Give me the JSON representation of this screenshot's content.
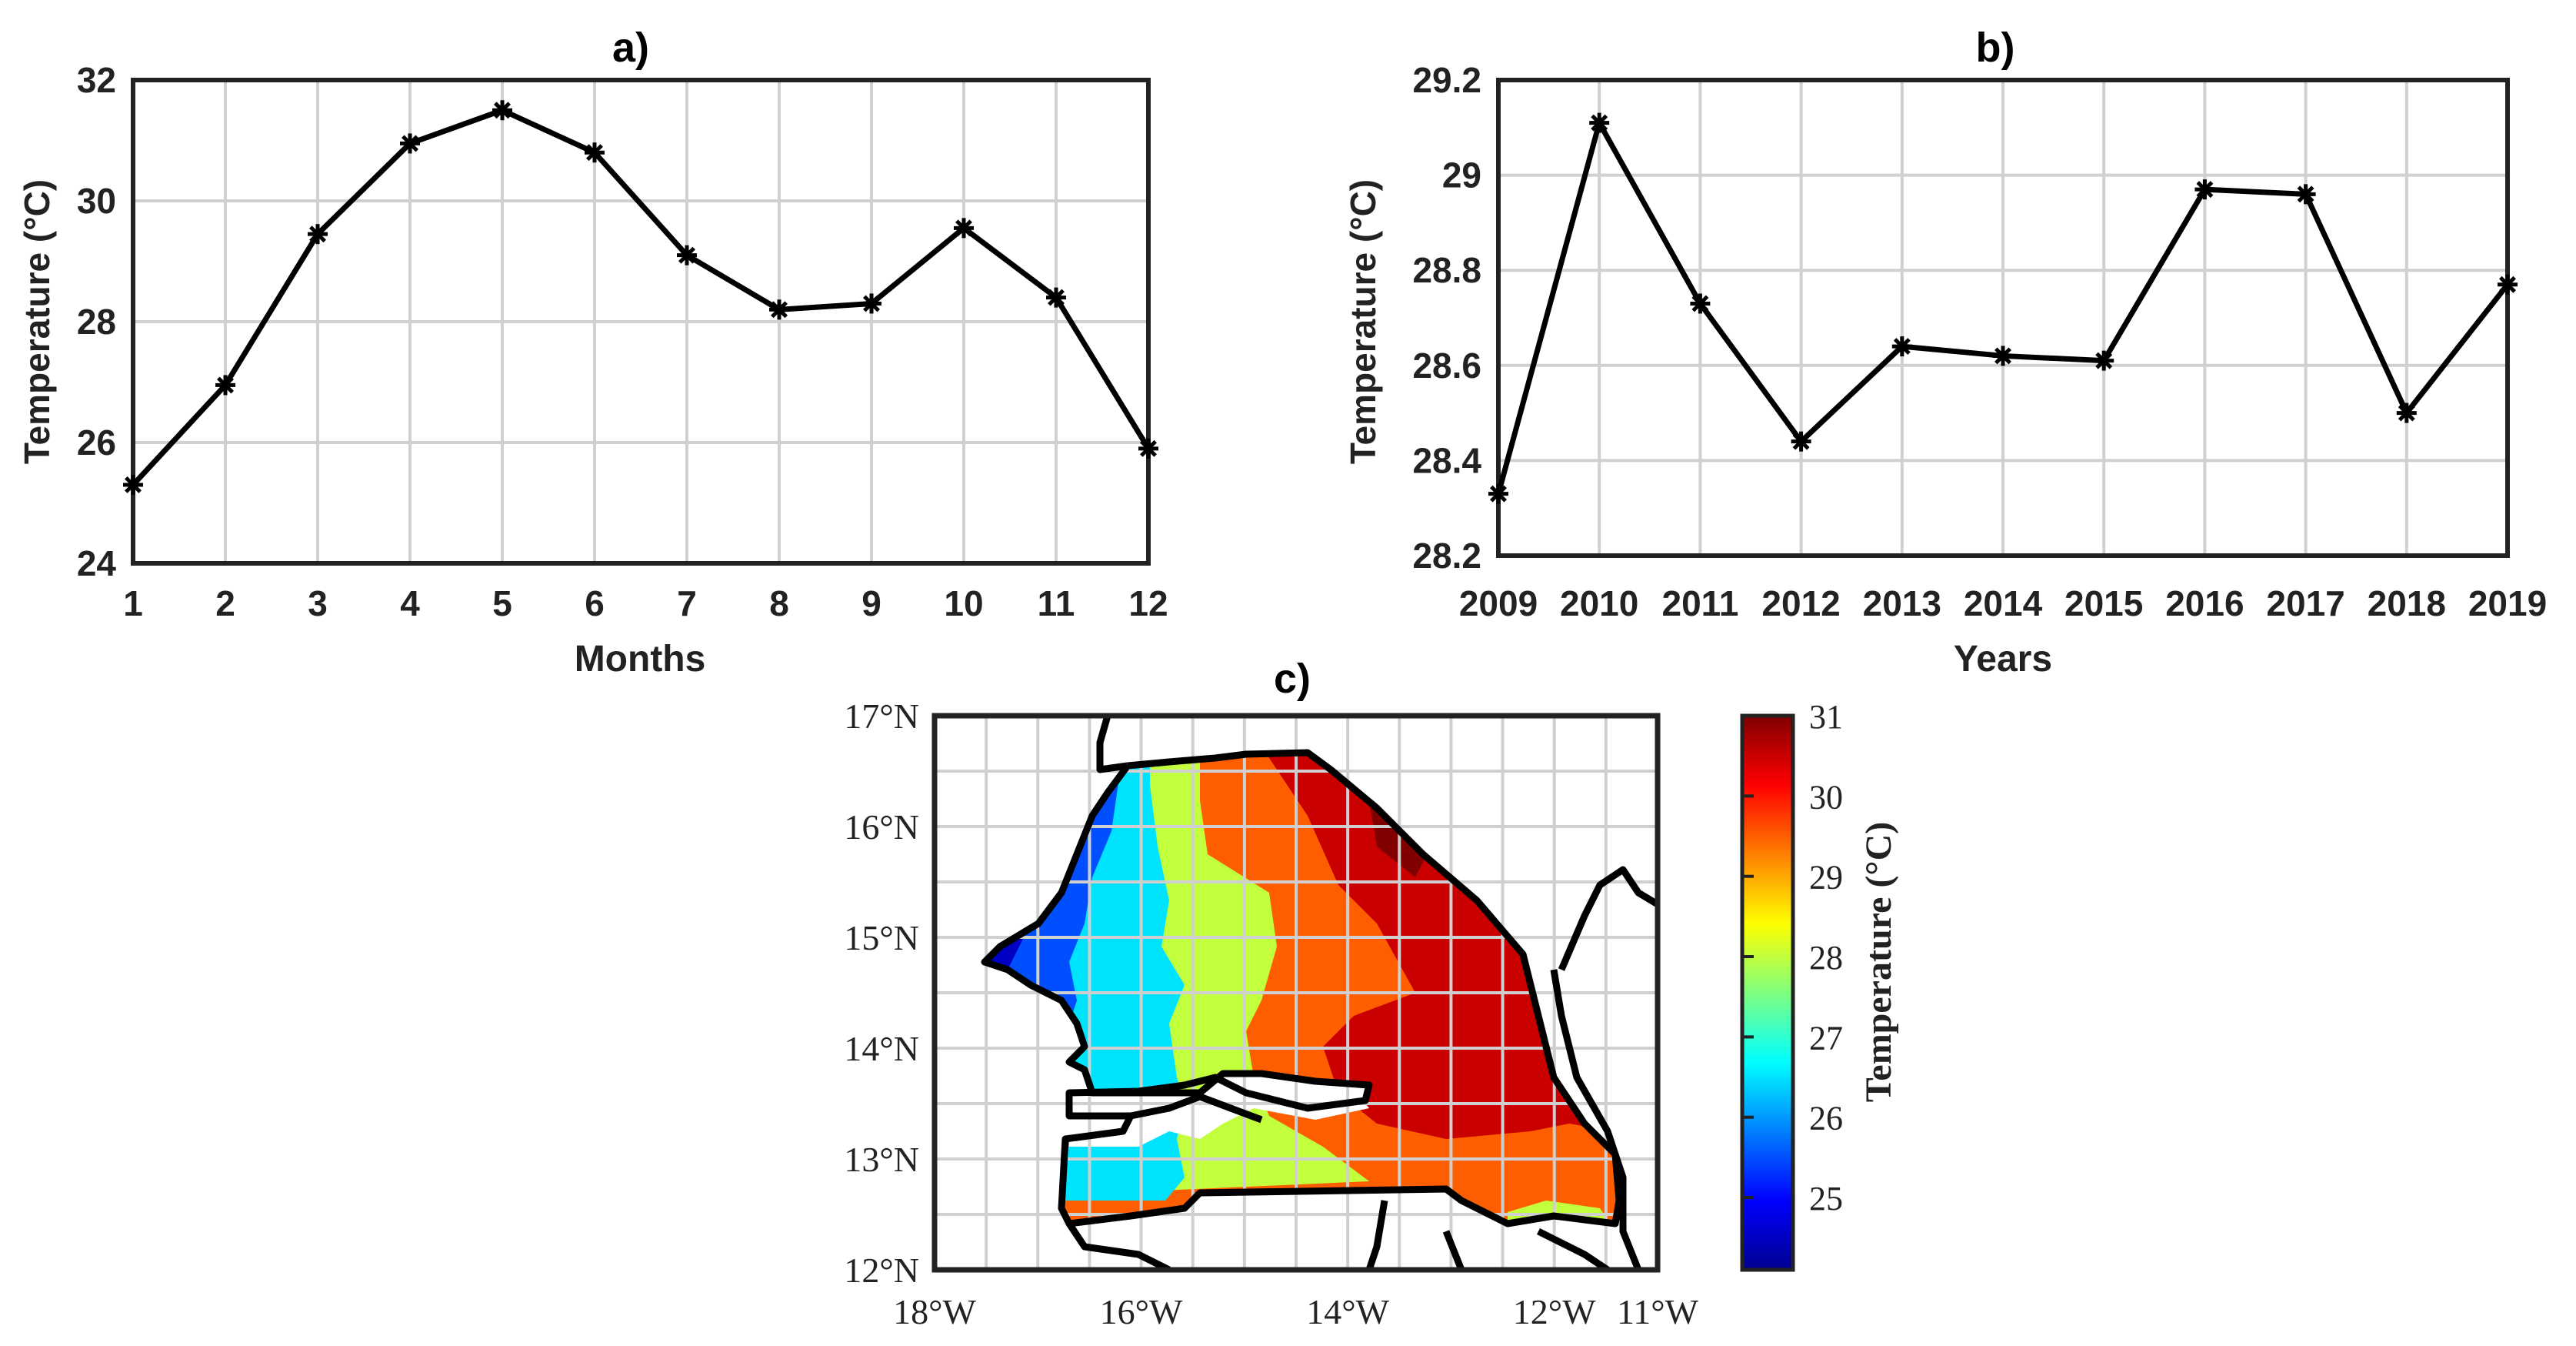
{
  "chart_data": [
    {
      "panel": "a)",
      "type": "line",
      "title": "a)",
      "xlabel": "Months",
      "ylabel": "Temperature (°C)",
      "x": [
        1,
        2,
        3,
        4,
        5,
        6,
        7,
        8,
        9,
        10,
        11,
        12
      ],
      "values": [
        25.3,
        26.95,
        29.45,
        30.95,
        31.5,
        30.8,
        29.1,
        28.2,
        28.3,
        29.55,
        28.4,
        25.9
      ],
      "xlim": [
        1,
        12
      ],
      "ylim": [
        24,
        32
      ],
      "xticks": [
        "1",
        "2",
        "3",
        "4",
        "5",
        "6",
        "7",
        "8",
        "9",
        "10",
        "11",
        "12"
      ],
      "yticks": [
        "24",
        "26",
        "28",
        "30",
        "32"
      ],
      "grid": true,
      "marker": "asterisk",
      "color": "#000000"
    },
    {
      "panel": "b)",
      "type": "line",
      "title": "b)",
      "xlabel": "Years",
      "ylabel": "Temperature (°C)",
      "x": [
        2009,
        2010,
        2011,
        2012,
        2013,
        2014,
        2015,
        2016,
        2017,
        2018,
        2019
      ],
      "values": [
        28.33,
        29.11,
        28.73,
        28.44,
        28.64,
        28.62,
        28.61,
        28.97,
        28.96,
        28.5,
        28.77
      ],
      "xlim": [
        2009,
        2019
      ],
      "ylim": [
        28.2,
        29.2
      ],
      "xticks": [
        "2009",
        "2010",
        "2011",
        "2012",
        "2013",
        "2014",
        "2015",
        "2016",
        "2017",
        "2018",
        "2019"
      ],
      "yticks": [
        "28.2",
        "28.4",
        "28.6",
        "28.8",
        "29",
        "29.2"
      ],
      "grid": true,
      "marker": "asterisk",
      "color": "#000000"
    },
    {
      "panel": "c)",
      "type": "heatmap",
      "title": "c)",
      "colorbar_label": "Temperature (°C)",
      "colorbar_ticks": [
        "25",
        "26",
        "27",
        "28",
        "29",
        "30",
        "31"
      ],
      "colorbar_range": [
        24.1,
        31
      ],
      "xlim_deg": [
        -18,
        -11
      ],
      "ylim_deg": [
        12,
        17
      ],
      "xticks": [
        "18°W",
        "16°W",
        "14°W",
        "12°W",
        "11°W"
      ],
      "yticks": [
        "12°N",
        "13°N",
        "14°N",
        "15°N",
        "16°N",
        "17°N"
      ],
      "zone_temperatures": [
        24.5,
        25.5,
        26.5,
        28,
        29.5,
        30.5,
        31
      ],
      "grid": true
    }
  ]
}
